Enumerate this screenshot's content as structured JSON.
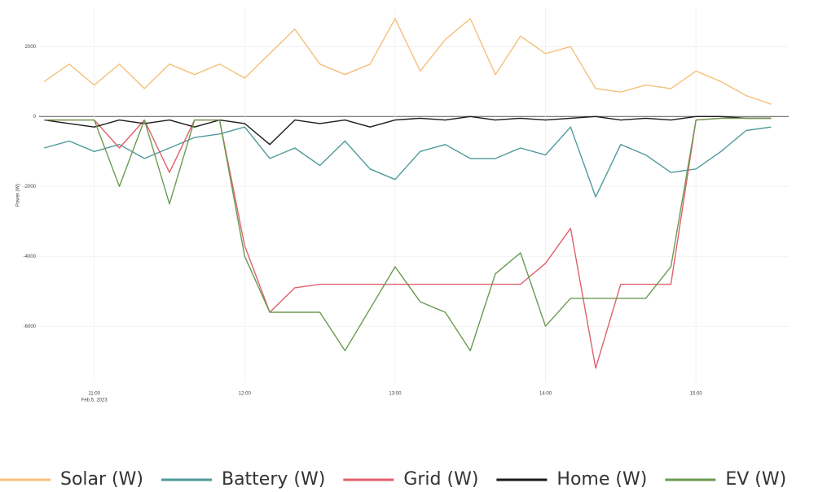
{
  "chart_data": {
    "type": "line",
    "y_label": "Power (W)",
    "x": [
      "2023-02-05T10:40",
      "2023-02-05T10:50",
      "2023-02-05T11:00",
      "2023-02-05T11:10",
      "2023-02-05T11:20",
      "2023-02-05T11:30",
      "2023-02-05T11:40",
      "2023-02-05T11:50",
      "2023-02-05T12:00",
      "2023-02-05T12:10",
      "2023-02-05T12:20",
      "2023-02-05T12:30",
      "2023-02-05T12:40",
      "2023-02-05T12:50",
      "2023-02-05T13:00",
      "2023-02-05T13:10",
      "2023-02-05T13:20",
      "2023-02-05T13:30",
      "2023-02-05T13:40",
      "2023-02-05T13:50",
      "2023-02-05T14:00",
      "2023-02-05T14:10",
      "2023-02-05T14:20",
      "2023-02-05T14:30",
      "2023-02-05T14:40",
      "2023-02-05T14:50",
      "2023-02-05T15:00",
      "2023-02-05T15:10",
      "2023-02-05T15:20",
      "2023-02-05T15:30"
    ],
    "series": [
      {
        "name": "Solar (W)",
        "color": "#f5c07a",
        "values": [
          1000,
          1500,
          900,
          1500,
          800,
          1500,
          1200,
          1500,
          1100,
          1800,
          2500,
          1500,
          1200,
          1500,
          2800,
          1300,
          2200,
          2800,
          1200,
          2300,
          1800,
          2000,
          800,
          700,
          900,
          800,
          1300,
          1000,
          600,
          350
        ]
      },
      {
        "name": "Battery (W)",
        "color": "#4f9a9c",
        "values": [
          -900,
          -700,
          -1000,
          -800,
          -1200,
          -900,
          -600,
          -500,
          -300,
          -1200,
          -900,
          -1400,
          -700,
          -1500,
          -1800,
          -1000,
          -800,
          -1200,
          -1200,
          -900,
          -1100,
          -300,
          -2300,
          -800,
          -1100,
          -1600,
          -1500,
          -1000,
          -400,
          -300
        ]
      },
      {
        "name": "Grid (W)",
        "color": "#e0606e",
        "values": [
          -100,
          -100,
          -100,
          -900,
          -100,
          -1600,
          -100,
          -100,
          -3700,
          -5600,
          -4900,
          -4800,
          -4800,
          -4800,
          -4800,
          -4800,
          -4800,
          -4800,
          -4800,
          -4800,
          -4200,
          -3200,
          -7200,
          -4800,
          -4800,
          -4800,
          -100,
          -50,
          -50,
          -50
        ]
      },
      {
        "name": "Home (W)",
        "color": "#1a1a1a",
        "values": [
          -100,
          -200,
          -300,
          -100,
          -200,
          -100,
          -300,
          -100,
          -200,
          -800,
          -100,
          -200,
          -100,
          -300,
          -100,
          -50,
          -100,
          0,
          -100,
          -50,
          -100,
          -50,
          0,
          -100,
          -50,
          -100,
          0,
          0,
          -50,
          -50
        ]
      },
      {
        "name": "EV (W)",
        "color": "#6a9a50",
        "values": [
          -100,
          -100,
          -100,
          -2000,
          -100,
          -2500,
          -100,
          -100,
          -4000,
          -5600,
          -5600,
          -5600,
          -6700,
          -5500,
          -4300,
          -5300,
          -5600,
          -6700,
          -4500,
          -3900,
          -6000,
          -5200,
          -5200,
          -5200,
          -5200,
          -4300,
          -100,
          -50,
          -50,
          -50
        ]
      }
    ],
    "xlim": [
      "2023-02-05T10:38",
      "2023-02-05T15:37"
    ],
    "xticks": [
      {
        "value": "2023-02-05T11:00",
        "label": "11:00"
      },
      {
        "value": "2023-02-05T12:00",
        "label": "12:00"
      },
      {
        "value": "2023-02-05T13:00",
        "label": "13:00"
      },
      {
        "value": "2023-02-05T14:00",
        "label": "14:00"
      },
      {
        "value": "2023-02-05T15:00",
        "label": "15:00"
      }
    ],
    "x_date_label": "Feb 5, 2023",
    "ylim": [
      -7600,
      3100
    ],
    "yticks": [
      2000,
      0,
      -2000,
      -4000,
      -6000
    ],
    "grid": true,
    "legend": "bottom"
  }
}
